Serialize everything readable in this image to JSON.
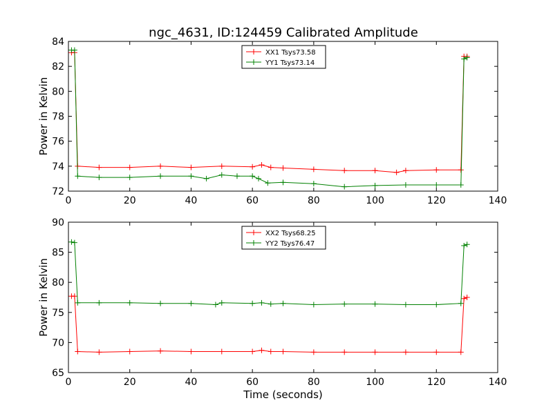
{
  "figure": {
    "title": "ngc_4631, ID:124459 Calibrated Amplitude"
  },
  "chart_data": [
    {
      "type": "line",
      "title": "ngc_4631, ID:124459 Calibrated Amplitude",
      "xlabel": "",
      "ylabel": "Power in Kelvin",
      "xlim": [
        0,
        140
      ],
      "ylim": [
        72,
        84
      ],
      "xticks": [
        0,
        20,
        40,
        60,
        80,
        100,
        120,
        140
      ],
      "yticks": [
        72,
        74,
        76,
        78,
        80,
        82,
        84
      ],
      "legend": "top-center",
      "grid": false,
      "marker": "+",
      "series": [
        {
          "name": "XX1 Tsys73.58",
          "color": "#ff0000",
          "x": [
            1,
            2,
            3,
            10,
            20,
            30,
            40,
            50,
            60,
            63,
            66,
            70,
            80,
            90,
            100,
            107,
            110,
            120,
            128,
            129,
            130
          ],
          "y": [
            83.1,
            83.1,
            74.0,
            73.9,
            73.9,
            74.0,
            73.9,
            74.0,
            73.95,
            74.1,
            73.9,
            73.85,
            73.75,
            73.65,
            73.65,
            73.5,
            73.65,
            73.7,
            73.7,
            82.8,
            82.8
          ]
        },
        {
          "name": "YY1 Tsys73.14",
          "color": "#008000",
          "x": [
            1,
            2,
            3,
            10,
            20,
            30,
            40,
            45,
            50,
            55,
            60,
            62,
            65,
            70,
            80,
            90,
            100,
            110,
            120,
            128,
            129,
            130
          ],
          "y": [
            83.3,
            83.3,
            73.2,
            73.1,
            73.1,
            73.2,
            73.2,
            73.0,
            73.3,
            73.2,
            73.2,
            73.0,
            72.65,
            72.7,
            72.6,
            72.35,
            72.45,
            72.5,
            72.5,
            72.5,
            82.6,
            82.7
          ]
        }
      ]
    },
    {
      "type": "line",
      "title": "",
      "xlabel": "Time (seconds)",
      "ylabel": "Power in Kelvin",
      "xlim": [
        0,
        140
      ],
      "ylim": [
        65,
        90
      ],
      "xticks": [
        0,
        20,
        40,
        60,
        80,
        100,
        120,
        140
      ],
      "yticks": [
        65,
        70,
        75,
        80,
        85,
        90
      ],
      "legend": "top-center",
      "grid": false,
      "marker": "+",
      "series": [
        {
          "name": "XX2 Tsys68.25",
          "color": "#ff0000",
          "x": [
            1,
            2,
            3,
            10,
            20,
            30,
            40,
            50,
            60,
            63,
            66,
            70,
            80,
            90,
            100,
            110,
            120,
            128,
            129,
            130
          ],
          "y": [
            77.7,
            77.7,
            68.5,
            68.4,
            68.5,
            68.6,
            68.5,
            68.5,
            68.5,
            68.7,
            68.5,
            68.5,
            68.4,
            68.4,
            68.4,
            68.4,
            68.4,
            68.4,
            77.3,
            77.5
          ]
        },
        {
          "name": "YY2 Tsys76.47",
          "color": "#008000",
          "x": [
            1,
            2,
            3,
            10,
            20,
            30,
            40,
            48,
            50,
            60,
            63,
            66,
            70,
            80,
            90,
            100,
            110,
            120,
            128,
            129,
            130
          ],
          "y": [
            86.7,
            86.6,
            76.6,
            76.6,
            76.6,
            76.5,
            76.5,
            76.3,
            76.6,
            76.5,
            76.6,
            76.4,
            76.5,
            76.3,
            76.4,
            76.4,
            76.3,
            76.3,
            76.5,
            86.1,
            86.3
          ]
        }
      ]
    }
  ]
}
